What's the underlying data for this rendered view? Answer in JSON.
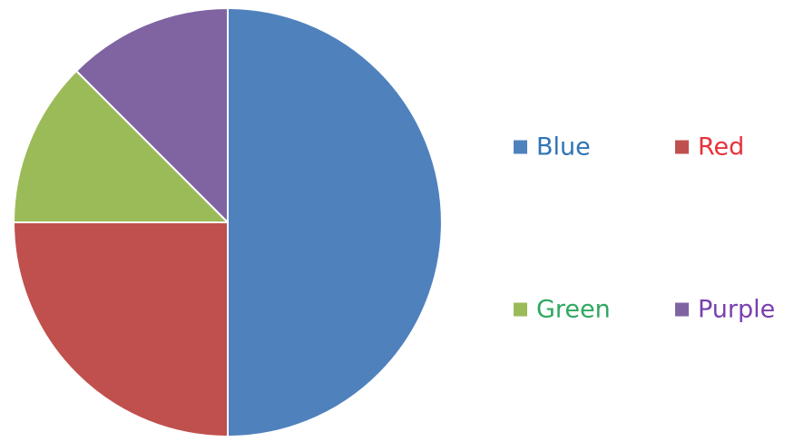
{
  "chart_data": {
    "type": "pie",
    "title": "",
    "slices": [
      {
        "label": "Blue",
        "value": 50,
        "color": "#4F81BD",
        "text_color": "#2E74B5"
      },
      {
        "label": "Red",
        "value": 25,
        "color": "#C0504D",
        "text_color": "#E8323A"
      },
      {
        "label": "Green",
        "value": 12.5,
        "color": "#9BBB59",
        "text_color": "#2FA860"
      },
      {
        "label": "Purple",
        "value": 12.5,
        "color": "#8064A2",
        "text_color": "#7A3FB0"
      }
    ],
    "start_angle": "12 o'clock",
    "direction": "clockwise",
    "legend_position": "right",
    "legend_columns": 2
  }
}
